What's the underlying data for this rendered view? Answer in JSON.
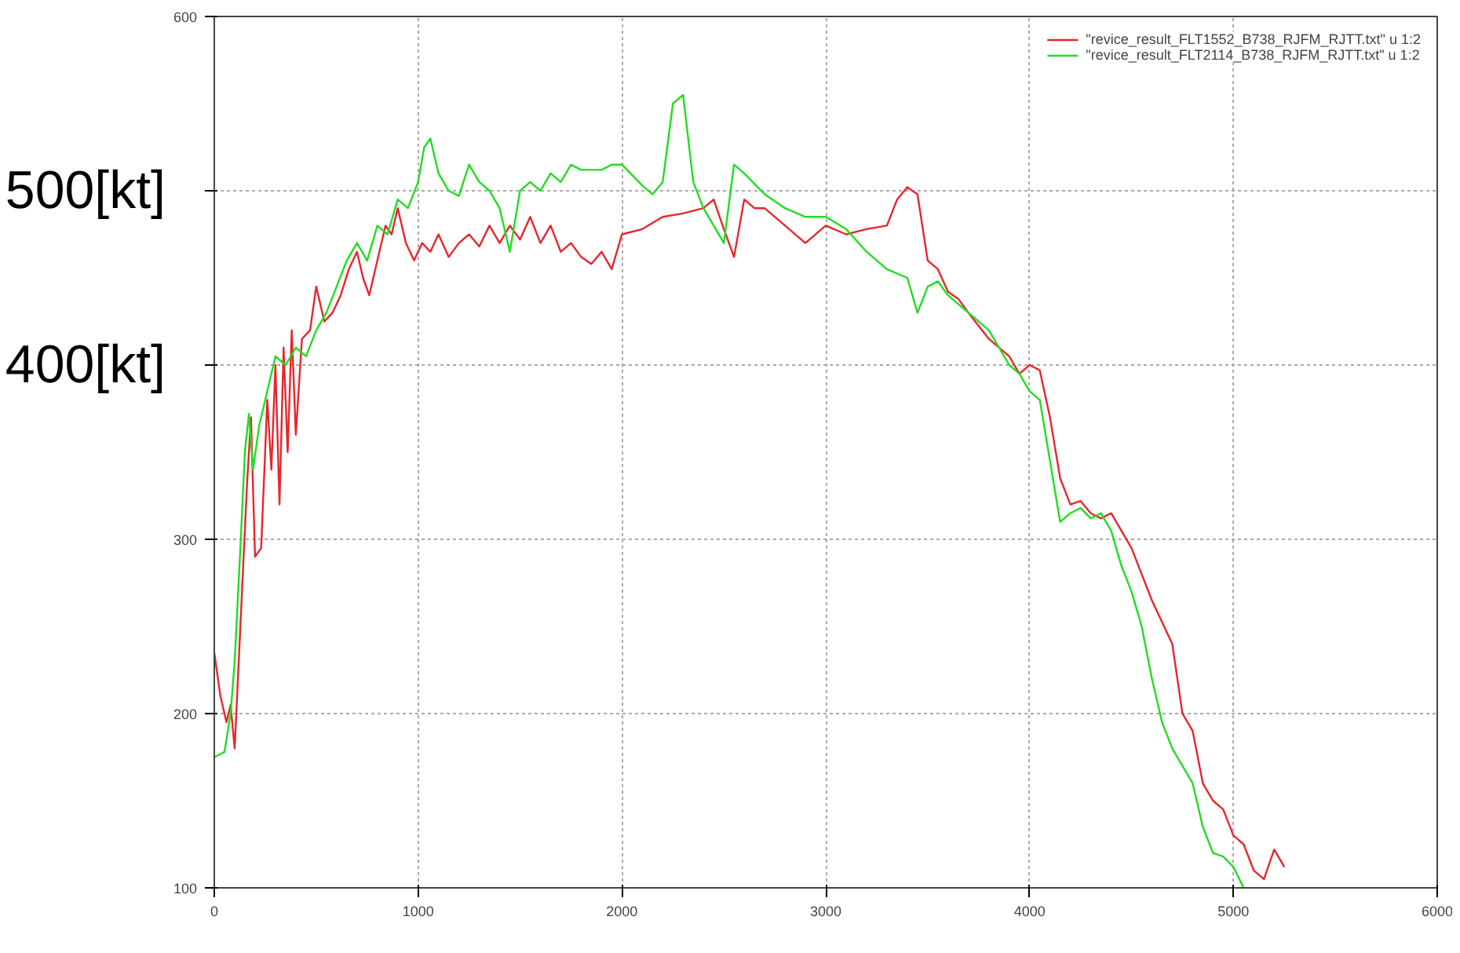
{
  "chart_data": {
    "type": "line",
    "xlim": [
      0,
      6000
    ],
    "ylim": [
      100,
      600
    ],
    "xticks": [
      0,
      1000,
      2000,
      3000,
      4000,
      5000,
      6000
    ],
    "yticks": [
      100,
      200,
      300,
      {
        "value": 400,
        "label": null
      },
      {
        "value": 500,
        "label": null
      },
      600
    ],
    "annotations": [
      "500[kt]",
      "400[kt]"
    ],
    "grid": true,
    "legend": "top right",
    "marker": "none",
    "line_style": "solid",
    "series": [
      {
        "name": "\"revice_result_FLT1552_B738_RJFM_RJTT.txt\" u 1:2",
        "color": "#e8262c",
        "x": [
          0,
          30,
          60,
          80,
          100,
          120,
          140,
          160,
          180,
          200,
          230,
          260,
          280,
          300,
          320,
          340,
          360,
          380,
          400,
          430,
          470,
          500,
          540,
          580,
          620,
          660,
          700,
          730,
          760,
          800,
          840,
          870,
          900,
          940,
          980,
          1020,
          1060,
          1100,
          1150,
          1200,
          1250,
          1300,
          1350,
          1400,
          1450,
          1500,
          1550,
          1600,
          1650,
          1700,
          1750,
          1800,
          1850,
          1900,
          1950,
          2000,
          2100,
          2200,
          2300,
          2400,
          2450,
          2500,
          2550,
          2600,
          2650,
          2700,
          2800,
          2900,
          3000,
          3100,
          3200,
          3300,
          3350,
          3400,
          3450,
          3500,
          3550,
          3600,
          3650,
          3700,
          3800,
          3900,
          3950,
          4000,
          4050,
          4100,
          4150,
          4200,
          4250,
          4300,
          4350,
          4400,
          4450,
          4500,
          4600,
          4700,
          4750,
          4800,
          4850,
          4900,
          4950,
          5000,
          5050,
          5100,
          5150,
          5200,
          5250
        ],
        "values": [
          235,
          210,
          195,
          205,
          180,
          230,
          280,
          330,
          370,
          290,
          295,
          380,
          340,
          400,
          320,
          410,
          350,
          420,
          360,
          415,
          420,
          445,
          425,
          430,
          440,
          455,
          465,
          450,
          440,
          460,
          480,
          475,
          490,
          470,
          460,
          470,
          465,
          475,
          462,
          470,
          475,
          468,
          480,
          470,
          480,
          472,
          485,
          470,
          480,
          465,
          470,
          462,
          458,
          465,
          455,
          475,
          478,
          485,
          487,
          490,
          495,
          478,
          462,
          495,
          490,
          490,
          480,
          470,
          480,
          475,
          478,
          480,
          495,
          502,
          498,
          460,
          455,
          442,
          438,
          430,
          415,
          405,
          395,
          400,
          397,
          370,
          335,
          320,
          322,
          315,
          312,
          315,
          305,
          295,
          265,
          240,
          200,
          190,
          160,
          150,
          145,
          130,
          125,
          110,
          105,
          122,
          112
        ]
      },
      {
        "name": "\"revice_result_FLT2114_B738_RJFM_RJTT.txt\" u 1:2",
        "color": "#22dd22",
        "x": [
          0,
          50,
          80,
          100,
          130,
          150,
          170,
          190,
          220,
          260,
          300,
          350,
          400,
          450,
          500,
          550,
          600,
          650,
          700,
          750,
          800,
          850,
          900,
          950,
          1000,
          1030,
          1060,
          1100,
          1150,
          1200,
          1250,
          1300,
          1350,
          1400,
          1450,
          1500,
          1550,
          1600,
          1650,
          1700,
          1750,
          1800,
          1900,
          1950,
          2000,
          2100,
          2150,
          2200,
          2250,
          2300,
          2350,
          2400,
          2450,
          2500,
          2550,
          2600,
          2700,
          2800,
          2900,
          3000,
          3100,
          3200,
          3300,
          3400,
          3450,
          3500,
          3550,
          3600,
          3700,
          3800,
          3900,
          3950,
          4000,
          4050,
          4100,
          4150,
          4200,
          4250,
          4300,
          4350,
          4400,
          4450,
          4500,
          4550,
          4600,
          4650,
          4700,
          4750,
          4800,
          4850,
          4900,
          4950,
          5000,
          5050
        ],
        "values": [
          175,
          178,
          200,
          230,
          300,
          350,
          372,
          340,
          365,
          385,
          405,
          400,
          410,
          405,
          420,
          430,
          445,
          460,
          470,
          460,
          480,
          475,
          495,
          490,
          505,
          525,
          530,
          510,
          500,
          497,
          515,
          505,
          500,
          490,
          465,
          500,
          505,
          500,
          510,
          505,
          515,
          512,
          512,
          515,
          515,
          503,
          498,
          505,
          550,
          555,
          505,
          490,
          480,
          470,
          515,
          510,
          498,
          490,
          485,
          485,
          478,
          465,
          455,
          450,
          430,
          445,
          448,
          440,
          430,
          420,
          400,
          395,
          385,
          380,
          345,
          310,
          315,
          318,
          312,
          315,
          305,
          285,
          270,
          250,
          220,
          195,
          180,
          170,
          160,
          135,
          120,
          118,
          112,
          100
        ]
      }
    ]
  }
}
